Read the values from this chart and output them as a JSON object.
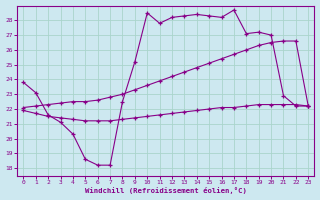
{
  "xlabel": "Windchill (Refroidissement éolien,°C)",
  "bg_color": "#cde8f0",
  "line_color": "#880088",
  "grid_color": "#aad4cc",
  "xlim": [
    -0.5,
    23.5
  ],
  "ylim": [
    17.5,
    29.0
  ],
  "yticks": [
    18,
    19,
    20,
    21,
    22,
    23,
    24,
    25,
    26,
    27,
    28
  ],
  "xticks": [
    0,
    1,
    2,
    3,
    4,
    5,
    6,
    7,
    8,
    9,
    10,
    11,
    12,
    13,
    14,
    15,
    16,
    17,
    18,
    19,
    20,
    21,
    22,
    23
  ],
  "series": [
    {
      "x": [
        0,
        1,
        2,
        3,
        4,
        5,
        6,
        7,
        8,
        9,
        10,
        11,
        12,
        13,
        14,
        15,
        16,
        17,
        18,
        19,
        20,
        21,
        22,
        23
      ],
      "y": [
        23.8,
        23.1,
        21.6,
        21.1,
        20.3,
        18.6,
        18.2,
        18.2,
        22.5,
        25.2,
        28.5,
        27.8,
        28.2,
        28.3,
        28.4,
        28.3,
        28.2,
        28.7,
        27.1,
        27.2,
        27.0,
        22.9,
        22.2,
        22.2
      ]
    },
    {
      "x": [
        0,
        1,
        2,
        3,
        4,
        5,
        6,
        7,
        8,
        9,
        10,
        11,
        12,
        13,
        14,
        15,
        16,
        17,
        18,
        19,
        20,
        21,
        22,
        23
      ],
      "y": [
        21.9,
        21.7,
        21.5,
        21.4,
        21.3,
        21.2,
        21.2,
        21.2,
        21.3,
        21.4,
        21.5,
        21.6,
        21.7,
        21.8,
        21.9,
        22.0,
        22.1,
        22.1,
        22.2,
        22.3,
        22.3,
        22.3,
        22.3,
        22.2
      ]
    },
    {
      "x": [
        0,
        1,
        2,
        3,
        4,
        5,
        6,
        7,
        8,
        9,
        10,
        11,
        12,
        13,
        14,
        15,
        16,
        17,
        18,
        19,
        20,
        21,
        22,
        23
      ],
      "y": [
        22.1,
        22.2,
        22.3,
        22.4,
        22.5,
        22.5,
        22.6,
        22.8,
        23.0,
        23.3,
        23.6,
        23.9,
        24.2,
        24.5,
        24.8,
        25.1,
        25.4,
        25.7,
        26.0,
        26.3,
        26.5,
        26.6,
        26.6,
        22.2
      ]
    }
  ]
}
